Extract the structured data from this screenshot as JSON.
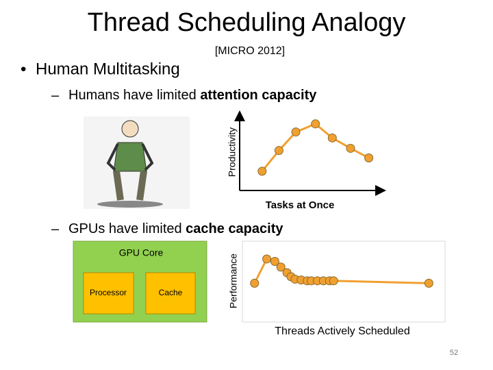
{
  "title": "Thread Scheduling Analogy",
  "citation": "[MICRO 2012]",
  "bullet": "Human Multitasking",
  "sub_bullets": [
    {
      "text": "Humans have limited ",
      "bold": "attention capacity"
    },
    {
      "text": "GPUs have limited ",
      "bold": "cache capacity"
    }
  ],
  "gpu_diagram": {
    "title": "GPU Core",
    "boxes": [
      "Processor",
      "Cache"
    ]
  },
  "page_number": "52",
  "chart_data": [
    {
      "type": "line",
      "x_label": "Tasks at Once",
      "y_label": "Productivity",
      "color": "#f0a030",
      "x": [
        16,
        28,
        40,
        54,
        66,
        79,
        92
      ],
      "values": [
        26,
        54,
        79,
        90,
        71,
        57,
        44
      ],
      "xlim": [
        0,
        100
      ],
      "ylim": [
        0,
        100
      ]
    },
    {
      "type": "line",
      "x_label": "Threads Actively Scheduled",
      "y_label": "Performance",
      "color": "#f0a030",
      "x": [
        6,
        12,
        16,
        19,
        22,
        24,
        26,
        29,
        32,
        34,
        37,
        40,
        43,
        45,
        92
      ],
      "values": [
        48,
        78,
        75,
        68,
        61,
        56,
        53,
        52,
        51,
        51,
        51,
        51,
        51,
        51,
        48
      ],
      "xlim": [
        0,
        100
      ],
      "ylim": [
        0,
        100
      ]
    }
  ]
}
